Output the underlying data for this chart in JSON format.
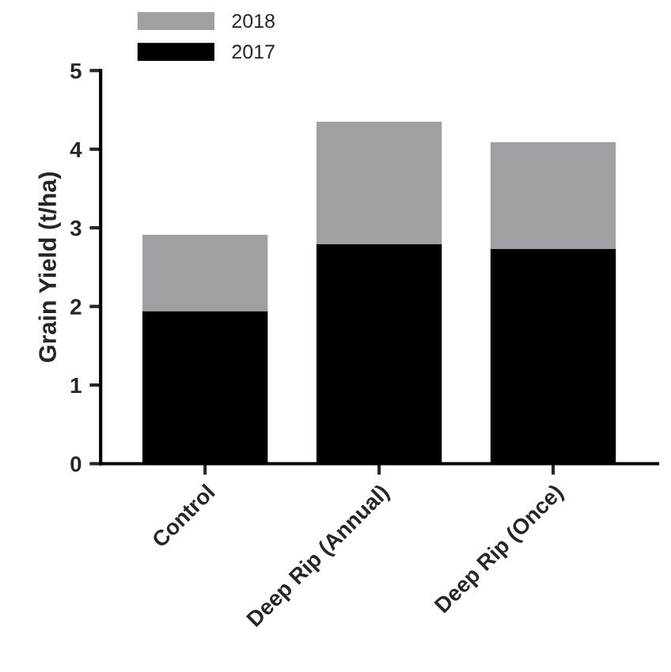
{
  "chart_data": {
    "type": "bar",
    "stacked": true,
    "ylabel": "Grain Yield (t/ha)",
    "categories": [
      "Control",
      "Deep Rip (Annual)",
      "Deep Rip (Once)"
    ],
    "series": [
      {
        "name": "2017",
        "color": "#000000",
        "values": [
          1.94,
          2.79,
          2.73
        ]
      },
      {
        "name": "2018",
        "color": "#a0a0a4",
        "values": [
          0.97,
          1.56,
          1.36
        ]
      }
    ],
    "ylim": [
      0,
      5
    ],
    "yticks": [
      0,
      1,
      2,
      3,
      4,
      5
    ],
    "grid": false,
    "legend": "top left"
  }
}
